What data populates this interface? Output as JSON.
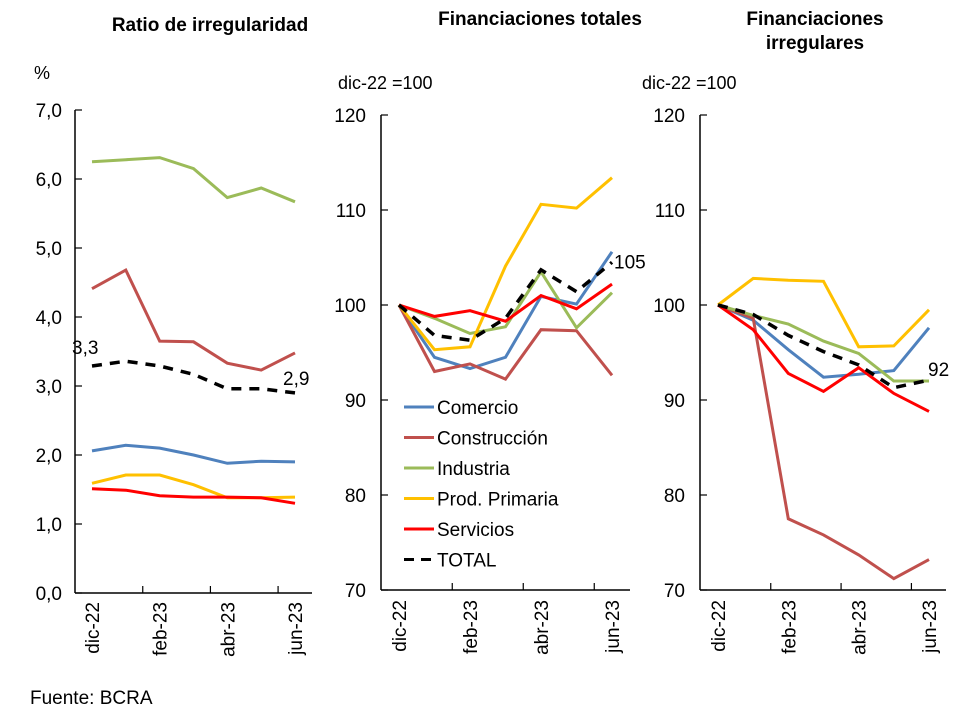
{
  "source": "Fuente: BCRA",
  "chart_data": [
    {
      "type": "line",
      "title": "Ratio de irregularidad",
      "ylabel": "%",
      "xlabel": "",
      "ylim": [
        0,
        7
      ],
      "yticks": [
        0,
        1,
        2,
        3,
        4,
        5,
        6,
        7
      ],
      "ytick_labels": [
        "0,0",
        "1,0",
        "2,0",
        "3,0",
        "4,0",
        "5,0",
        "6,0",
        "7,0"
      ],
      "x": [
        "dic-22",
        "ene-23",
        "feb-23",
        "mar-23",
        "abr-23",
        "may-23",
        "jun-23"
      ],
      "xtick_labels": [
        "dic-22",
        "feb-23",
        "abr-23",
        "jun-23"
      ],
      "grid": false,
      "series": [
        {
          "name": "Comercio",
          "color": "#4f81bd",
          "dash": false,
          "values": [
            2.06,
            2.14,
            2.1,
            2.0,
            1.88,
            1.91,
            1.9
          ]
        },
        {
          "name": "Construcción",
          "color": "#c0504d",
          "dash": false,
          "values": [
            4.41,
            4.68,
            3.65,
            3.64,
            3.33,
            3.23,
            3.48
          ]
        },
        {
          "name": "Industria",
          "color": "#9bbb59",
          "dash": false,
          "values": [
            6.25,
            6.28,
            6.31,
            6.15,
            5.73,
            5.87,
            5.67
          ]
        },
        {
          "name": "Prod. Primaria",
          "color": "#ffc000",
          "dash": false,
          "values": [
            1.59,
            1.71,
            1.71,
            1.57,
            1.38,
            1.38,
            1.39
          ]
        },
        {
          "name": "Servicios",
          "color": "#ff0000",
          "dash": false,
          "values": [
            1.51,
            1.49,
            1.41,
            1.39,
            1.39,
            1.38,
            1.3
          ]
        },
        {
          "name": "TOTAL",
          "color": "#000000",
          "dash": true,
          "values": [
            3.29,
            3.36,
            3.29,
            3.17,
            2.96,
            2.96,
            2.9
          ]
        }
      ],
      "annotations": [
        {
          "text": "3,3",
          "series": "TOTAL",
          "point": 0
        },
        {
          "text": "2,9",
          "series": "TOTAL",
          "point": 6
        }
      ]
    },
    {
      "type": "line",
      "title": "Financiaciones totales",
      "ylabel": "dic-22 =100",
      "xlabel": "",
      "ylim": [
        70,
        120
      ],
      "yticks": [
        70,
        80,
        90,
        100,
        110,
        120
      ],
      "ytick_labels": [
        "70",
        "80",
        "90",
        "100",
        "110",
        "120"
      ],
      "x": [
        "dic-22",
        "ene-23",
        "feb-23",
        "mar-23",
        "abr-23",
        "may-23",
        "jun-23"
      ],
      "xtick_labels": [
        "dic-22",
        "feb-23",
        "abr-23",
        "jun-23"
      ],
      "grid": false,
      "legend": "bottom-left",
      "series": [
        {
          "name": "Comercio",
          "color": "#4f81bd",
          "dash": false,
          "values": [
            100,
            94.5,
            93.3,
            94.5,
            100.9,
            100.1,
            105.6
          ]
        },
        {
          "name": "Construcción",
          "color": "#c0504d",
          "dash": false,
          "values": [
            100,
            93.0,
            93.8,
            92.2,
            97.4,
            97.3,
            92.6
          ]
        },
        {
          "name": "Industria",
          "color": "#9bbb59",
          "dash": false,
          "values": [
            100,
            98.6,
            97.0,
            97.7,
            103.5,
            97.6,
            101.3
          ]
        },
        {
          "name": "Prod. Primaria",
          "color": "#ffc000",
          "dash": false,
          "values": [
            100,
            95.3,
            95.6,
            104.1,
            110.6,
            110.2,
            113.4
          ]
        },
        {
          "name": "Servicios",
          "color": "#ff0000",
          "dash": false,
          "values": [
            100,
            98.8,
            99.4,
            98.3,
            101.0,
            99.6,
            102.2
          ]
        },
        {
          "name": "TOTAL",
          "color": "#000000",
          "dash": true,
          "values": [
            100,
            96.8,
            96.3,
            98.6,
            103.7,
            101.4,
            104.5
          ]
        }
      ],
      "annotations": [
        {
          "text": "105",
          "series": "TOTAL",
          "point": 6
        }
      ]
    },
    {
      "type": "line",
      "title": "Financiaciones irregulares",
      "title_lines": [
        "Financiaciones",
        "irregulares"
      ],
      "ylabel": "dic-22 =100",
      "xlabel": "",
      "ylim": [
        70,
        120
      ],
      "yticks": [
        70,
        80,
        90,
        100,
        110,
        120
      ],
      "ytick_labels": [
        "70",
        "80",
        "90",
        "100",
        "110",
        "120"
      ],
      "x": [
        "dic-22",
        "ene-23",
        "feb-23",
        "mar-23",
        "abr-23",
        "may-23",
        "jun-23"
      ],
      "xtick_labels": [
        "dic-22",
        "feb-23",
        "abr-23",
        "jun-23"
      ],
      "grid": false,
      "series": [
        {
          "name": "Comercio",
          "color": "#4f81bd",
          "dash": false,
          "values": [
            100,
            98.4,
            95.3,
            92.4,
            92.7,
            93.1,
            97.6
          ]
        },
        {
          "name": "Construcción",
          "color": "#c0504d",
          "dash": false,
          "values": [
            100,
            98.6,
            77.5,
            75.8,
            73.7,
            71.2,
            73.2
          ]
        },
        {
          "name": "Industria",
          "color": "#9bbb59",
          "dash": false,
          "values": [
            100,
            98.9,
            98.0,
            96.2,
            94.9,
            92.0,
            92.0
          ]
        },
        {
          "name": "Prod. Primaria",
          "color": "#ffc000",
          "dash": false,
          "values": [
            100,
            102.8,
            102.6,
            102.5,
            95.6,
            95.7,
            99.5
          ]
        },
        {
          "name": "Servicios",
          "color": "#ff0000",
          "dash": false,
          "values": [
            100,
            97.4,
            92.8,
            90.9,
            93.4,
            90.7,
            88.8
          ]
        },
        {
          "name": "TOTAL",
          "color": "#000000",
          "dash": true,
          "values": [
            100,
            99.0,
            96.8,
            95.1,
            93.7,
            91.3,
            92.1
          ]
        }
      ],
      "annotations": [
        {
          "text": "92",
          "series": "TOTAL",
          "point": 6
        }
      ]
    }
  ]
}
